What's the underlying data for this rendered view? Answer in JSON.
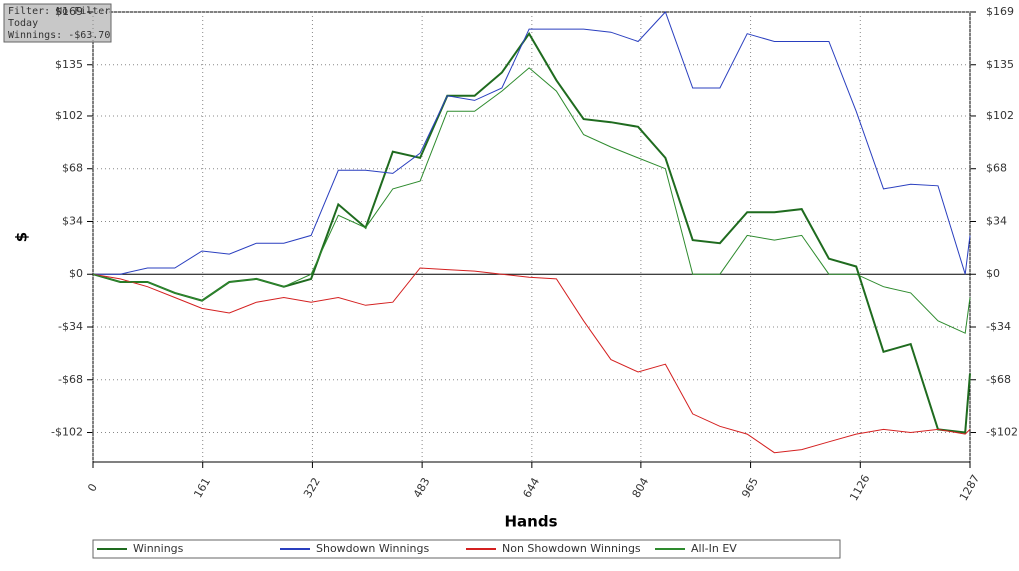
{
  "chart_data": {
    "type": "line",
    "annotations": [
      "Filter: No Filter",
      "Today",
      "Winnings: -$63.70"
    ],
    "xlabel": "Hands",
    "ylabel": "$",
    "x": [
      0,
      40,
      80,
      120,
      160,
      200,
      240,
      280,
      320,
      360,
      400,
      440,
      480,
      520,
      560,
      600,
      640,
      680,
      720,
      760,
      800,
      840,
      880,
      920,
      960,
      1000,
      1040,
      1080,
      1120,
      1160,
      1200,
      1240,
      1280,
      1287
    ],
    "xlim": [
      0,
      1287
    ],
    "xticks": [
      0,
      161,
      322,
      483,
      644,
      804,
      965,
      1126,
      1287
    ],
    "ylim": [
      -121,
      169
    ],
    "yticks": [
      {
        "value": 169,
        "label": "$169"
      },
      {
        "value": 135,
        "label": "$135"
      },
      {
        "value": 102,
        "label": "$102"
      },
      {
        "value": 68,
        "label": "$68"
      },
      {
        "value": 34,
        "label": "$34"
      },
      {
        "value": 0,
        "label": "$0"
      },
      {
        "value": -34,
        "label": "-$34"
      },
      {
        "value": -68,
        "label": "-$68"
      },
      {
        "value": -102,
        "label": "-$102"
      }
    ],
    "grid": true,
    "series": [
      {
        "name": "Winnings",
        "color": "#1f6b1f",
        "values": [
          0,
          -5,
          -5,
          -12,
          -17,
          -5,
          -3,
          -8,
          -3,
          45,
          30,
          79,
          75,
          115,
          115,
          130,
          155,
          125,
          100,
          98,
          95,
          75,
          22,
          20,
          40,
          40,
          42,
          10,
          5,
          -50,
          -45,
          -100,
          -102,
          -64
        ]
      },
      {
        "name": "Showdown Winnings",
        "color": "#2a3fbf",
        "values": [
          0,
          0,
          4,
          4,
          15,
          13,
          20,
          20,
          25,
          67,
          67,
          65,
          78,
          115,
          112,
          120,
          158,
          158,
          158,
          156,
          150,
          169,
          120,
          120,
          155,
          150,
          150,
          150,
          105,
          55,
          58,
          57,
          0,
          25
        ]
      },
      {
        "name": "Non Showdown Winnings",
        "color": "#d42020",
        "values": [
          0,
          -3,
          -8,
          -15,
          -22,
          -25,
          -18,
          -15,
          -18,
          -15,
          -20,
          -18,
          4,
          3,
          2,
          0,
          -2,
          -3,
          -30,
          -55,
          -63,
          -58,
          -90,
          -98,
          -103,
          -115,
          -113,
          -108,
          -103,
          -100,
          -102,
          -100,
          -103,
          -100
        ]
      },
      {
        "name": "All-In EV",
        "color": "#2e8b2e",
        "values": [
          0,
          -5,
          -5,
          -12,
          -17,
          -5,
          -3,
          -8,
          0,
          38,
          30,
          55,
          60,
          105,
          105,
          118,
          133,
          118,
          90,
          82,
          75,
          68,
          0,
          0,
          25,
          22,
          25,
          0,
          0,
          -8,
          -12,
          -30,
          -38,
          -15
        ]
      }
    ]
  }
}
